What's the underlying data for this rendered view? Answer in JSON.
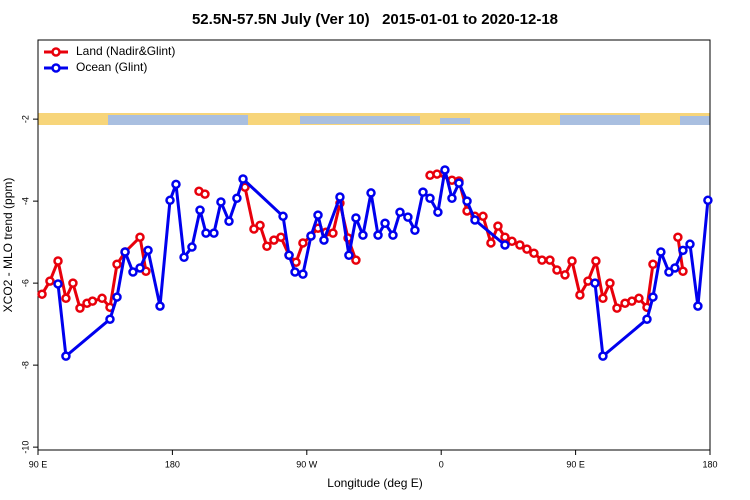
{
  "chart_data": {
    "type": "line",
    "title": "52.5N-57.5N July (Ver 10)   2015-01-01 to 2020-12-18",
    "x_label": "Longitude (deg E)",
    "y_label": "XCO2 - MLO trend (ppm)",
    "xlim": [
      90,
      540
    ],
    "xticks": [
      {
        "value": 90,
        "label": "90 E"
      },
      {
        "value": 180,
        "label": "180"
      },
      {
        "value": 270,
        "label": "90 W"
      },
      {
        "value": 360,
        "label": "0"
      },
      {
        "value": 450,
        "label": "90 E"
      },
      {
        "value": 540,
        "label": "180"
      }
    ],
    "ylim": [
      -10.07,
      -0.07
    ],
    "yticks": [
      -2,
      -4,
      -6,
      -8,
      -10
    ],
    "legend": "top-left",
    "series": [
      {
        "name": "Land (Nadir&Glint)",
        "color": "#e8000b",
        "x": [
          92.7,
          98.0,
          103.4,
          108.7,
          113.4,
          118.1,
          122.8,
          126.5,
          132.9,
          138.2,
          142.9,
          148.3,
          158.3,
          162.3,
          null,
          197.8,
          201.8,
          null,
          228.6,
          234.6,
          238.7,
          243.3,
          248.0,
          252.7,
          258.1,
          262.8,
          267.4,
          272.8,
          277.5,
          282.8,
          287.5,
          292.2,
          297.6,
          302.9,
          null,
          352.5,
          357.2,
          367.2,
          371.9,
          377.3,
          382.6,
          388.0,
          393.3,
          398.0,
          402.7,
          407.4,
          412.7,
          417.4,
          422.1,
          427.5,
          432.8,
          437.5,
          442.9,
          447.6,
          452.9,
          458.3,
          463.6,
          468.3,
          473.0,
          477.7,
          483.1,
          487.7,
          492.4,
          497.8,
          501.8,
          null,
          518.5,
          521.9
        ],
        "values": [
          -6.27,
          -5.95,
          -5.46,
          -6.37,
          -6.0,
          -6.61,
          -6.49,
          -6.44,
          -6.37,
          -6.59,
          -5.54,
          -5.24,
          -4.88,
          -5.71,
          null,
          -3.76,
          -3.83,
          null,
          -3.66,
          -4.68,
          -4.59,
          -5.1,
          -4.95,
          -4.88,
          -5.32,
          -5.49,
          -5.02,
          -4.85,
          -4.66,
          -4.76,
          -4.78,
          -4.05,
          -4.9,
          -5.44,
          null,
          -3.37,
          -3.34,
          -3.49,
          -3.51,
          -4.24,
          -4.37,
          -4.37,
          -5.02,
          -4.61,
          -4.88,
          -4.98,
          -5.07,
          -5.17,
          -5.27,
          -5.44,
          -5.44,
          -5.68,
          -5.8,
          -5.46,
          -6.29,
          -5.95,
          -5.46,
          -6.37,
          -6.0,
          -6.61,
          -6.49,
          -6.44,
          -6.37,
          -6.59,
          -5.54,
          null,
          -4.88,
          -5.71
        ]
      },
      {
        "name": "Ocean (Glint)",
        "color": "#0000ee",
        "x": [
          103.4,
          108.7,
          138.2,
          142.9,
          148.3,
          153.6,
          158.3,
          163.7,
          171.7,
          178.4,
          182.4,
          187.8,
          193.1,
          198.5,
          202.5,
          207.8,
          212.5,
          217.9,
          223.2,
          227.3,
          254.1,
          258.1,
          262.1,
          267.4,
          272.8,
          277.5,
          281.5,
          292.2,
          298.2,
          302.9,
          307.6,
          313.0,
          317.7,
          322.4,
          327.7,
          332.4,
          337.7,
          342.4,
          347.8,
          352.5,
          357.8,
          362.5,
          367.2,
          371.9,
          377.3,
          382.6,
          402.7,
          null,
          463.0,
          468.3,
          497.8,
          501.8,
          507.1,
          512.5,
          516.5,
          521.9,
          526.6,
          531.9,
          538.6
        ],
        "values": [
          -6.02,
          -7.78,
          -6.88,
          -6.34,
          -5.24,
          -5.73,
          -5.63,
          -5.2,
          -6.56,
          -3.98,
          -3.59,
          -5.37,
          -5.12,
          -4.22,
          -4.78,
          -4.78,
          -4.02,
          -4.49,
          -3.93,
          -3.46,
          -4.37,
          -5.32,
          -5.73,
          -5.78,
          -4.85,
          -4.34,
          -4.95,
          -3.9,
          -5.32,
          -4.41,
          -4.83,
          -3.8,
          -4.83,
          -4.54,
          -4.83,
          -4.27,
          -4.39,
          -4.71,
          -3.78,
          -3.93,
          -4.27,
          -3.24,
          -3.93,
          -3.56,
          -4.0,
          -4.46,
          -5.07,
          null,
          -6.0,
          -7.78,
          -6.88,
          -6.34,
          -5.24,
          -5.73,
          -5.63,
          -5.2,
          -5.05,
          -6.56,
          -3.98
        ]
      }
    ]
  }
}
